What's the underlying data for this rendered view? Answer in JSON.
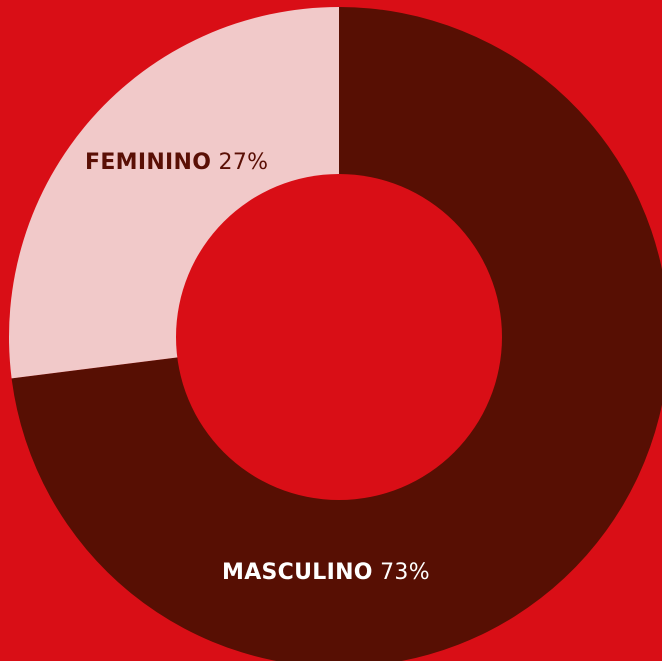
{
  "chart_data": {
    "type": "pie",
    "title": "",
    "donut": true,
    "slices": [
      {
        "label": "MASCULINO",
        "value": 73,
        "value_label": "73%",
        "color": "#570f03",
        "label_color": "#ffffff"
      },
      {
        "label": "FEMININO",
        "value": 27,
        "value_label": "27%",
        "color": "#f1c9c9",
        "label_color": "#5a0f05"
      }
    ]
  },
  "colors": {
    "background": "#d90e16",
    "hole": "#d90e16"
  }
}
